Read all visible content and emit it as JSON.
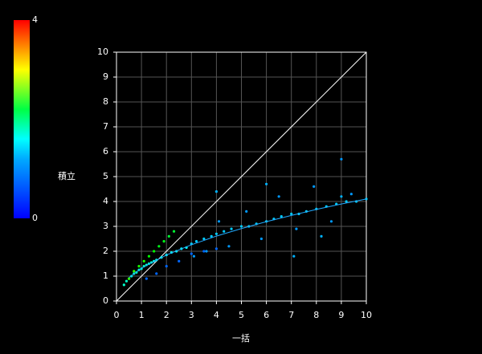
{
  "chart_data": {
    "type": "scatter",
    "xlabel": "一括",
    "ylabel": "積立",
    "xlim": [
      0,
      10
    ],
    "ylim": [
      0,
      10
    ],
    "xticks": [
      0,
      1,
      2,
      3,
      4,
      5,
      6,
      7,
      8,
      9,
      10
    ],
    "yticks": [
      0,
      1,
      2,
      3,
      4,
      5,
      6,
      7,
      8,
      9,
      10
    ],
    "grid": true,
    "colorbar": {
      "lim": [
        0,
        4
      ],
      "ticks": [
        0,
        4
      ]
    },
    "x": [
      0.3,
      0.4,
      0.5,
      0.6,
      0.7,
      0.8,
      0.9,
      1.0,
      1.1,
      1.2,
      1.3,
      1.4,
      1.5,
      1.6,
      1.8,
      2.0,
      2.2,
      2.4,
      2.6,
      2.8,
      0.5,
      0.7,
      0.9,
      1.1,
      1.3,
      1.5,
      1.7,
      1.9,
      2.1,
      2.3,
      3.0,
      3.2,
      3.5,
      3.8,
      4.0,
      4.3,
      4.6,
      5.0,
      5.3,
      5.6,
      6.0,
      6.3,
      6.6,
      7.0,
      7.3,
      7.6,
      8.0,
      8.4,
      8.8,
      9.2,
      9.6,
      10.0,
      3.1,
      3.6,
      4.1,
      4.5,
      5.2,
      5.8,
      6.5,
      7.2,
      7.9,
      8.6,
      9.0,
      9.4,
      1.2,
      1.6,
      2.0,
      2.5,
      3.0,
      3.5,
      4.0,
      4.0,
      9.0,
      8.2,
      7.1,
      6.0
    ],
    "y": [
      0.65,
      0.8,
      0.9,
      1.0,
      1.1,
      1.15,
      1.25,
      1.3,
      1.4,
      1.45,
      1.5,
      1.55,
      1.6,
      1.65,
      1.75,
      1.85,
      1.95,
      2.0,
      2.1,
      2.15,
      0.9,
      1.2,
      1.4,
      1.6,
      1.8,
      2.0,
      2.2,
      2.4,
      2.6,
      2.8,
      2.3,
      2.4,
      2.5,
      2.6,
      2.7,
      2.8,
      2.9,
      3.0,
      3.0,
      3.1,
      3.2,
      3.3,
      3.4,
      3.5,
      3.5,
      3.6,
      3.7,
      3.8,
      3.9,
      4.0,
      4.0,
      4.1,
      1.8,
      2.0,
      3.2,
      2.2,
      3.6,
      2.5,
      4.2,
      2.9,
      4.6,
      3.2,
      5.7,
      4.3,
      0.9,
      1.1,
      1.4,
      1.6,
      1.9,
      2.0,
      2.1,
      4.4,
      4.2,
      2.6,
      1.8,
      4.7
    ],
    "c": [
      1.2,
      1.2,
      1.3,
      1.2,
      1.2,
      1.3,
      1.2,
      1.2,
      1.3,
      1.2,
      1.2,
      1.2,
      1.1,
      1.1,
      1.1,
      1.0,
      1.0,
      1.0,
      1.0,
      1.0,
      2.2,
      2.2,
      2.1,
      2.1,
      2.0,
      2.0,
      1.9,
      1.9,
      1.8,
      1.8,
      0.8,
      0.8,
      0.8,
      0.8,
      0.8,
      0.8,
      0.8,
      0.8,
      0.8,
      0.8,
      0.8,
      0.8,
      0.8,
      0.8,
      0.8,
      0.8,
      0.8,
      0.8,
      0.8,
      0.8,
      0.8,
      0.8,
      0.6,
      0.6,
      0.6,
      0.6,
      0.6,
      0.6,
      0.6,
      0.6,
      0.6,
      0.6,
      0.6,
      0.6,
      0.4,
      0.4,
      0.4,
      0.4,
      0.4,
      0.4,
      0.4,
      0.7,
      0.7,
      0.7,
      0.7,
      0.7
    ],
    "diagonal": {
      "color": "#ffffff",
      "x": [
        0,
        10
      ],
      "y": [
        0,
        10
      ]
    },
    "fit": {
      "color": "#22aaff",
      "x": [
        0.5,
        1,
        2,
        3,
        4,
        5,
        6,
        7,
        8,
        9,
        10
      ],
      "y": [
        0.94,
        1.32,
        1.85,
        2.26,
        2.61,
        2.91,
        3.19,
        3.44,
        3.68,
        3.9,
        4.1
      ]
    }
  }
}
